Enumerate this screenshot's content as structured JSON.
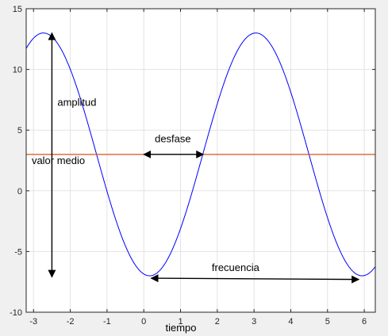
{
  "chart_data": {
    "type": "line",
    "title": "",
    "xlabel": "tiempo",
    "ylabel": "",
    "xlim": [
      -3.2,
      6.3
    ],
    "ylim": [
      -10,
      15
    ],
    "grid": true,
    "xticks": [
      -3,
      -2,
      -1,
      0,
      1,
      2,
      3,
      4,
      5,
      6
    ],
    "yticks": [
      -10,
      -5,
      0,
      5,
      10,
      15
    ],
    "x_tick_labels": [
      "-3",
      "-2",
      "-1",
      "0",
      "1",
      "2",
      "3",
      "4",
      "5",
      "6"
    ],
    "y_tick_labels": [
      "-10",
      "-5",
      "0",
      "5",
      "10",
      "15"
    ],
    "series": [
      {
        "style": "sine",
        "color": "#0000ff",
        "mean": 3,
        "amplitude": 10,
        "period": 5.78,
        "peak_x": 3.05,
        "x_range": [
          -3.2,
          6.3
        ]
      },
      {
        "style": "constant",
        "color": "#d95319",
        "y": 3,
        "x_range": [
          -3.2,
          6.3
        ]
      }
    ],
    "annotations": [
      {
        "text": "amplitud",
        "arrow_from": [
          -2.5,
          13
        ],
        "arrow_to": [
          -2.5,
          -7.1
        ],
        "text_pos": [
          -2.35,
          7
        ]
      },
      {
        "text": "valor medio",
        "text_pos": [
          -3.05,
          2.2
        ]
      },
      {
        "text": "desfase",
        "arrow_from": [
          0.0,
          3
        ],
        "arrow_to": [
          1.62,
          3
        ],
        "text_pos": [
          0.3,
          4
        ]
      },
      {
        "text": "frecuencia",
        "arrow_from": [
          0.2,
          -7.2
        ],
        "arrow_to": [
          5.85,
          -7.3
        ],
        "text_pos": [
          1.85,
          -6.6
        ]
      }
    ]
  }
}
